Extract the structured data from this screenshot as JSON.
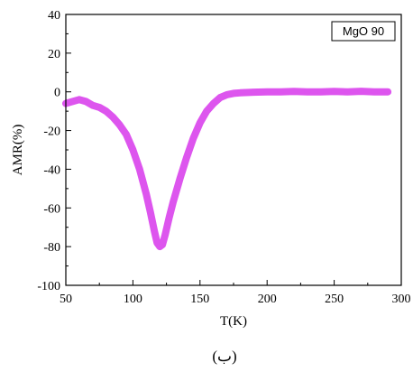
{
  "chart_data": {
    "type": "line",
    "xlabel": "T(K)",
    "ylabel": "AMR(%)",
    "xlim": [
      50,
      300
    ],
    "ylim": [
      -100,
      40
    ],
    "xticks": [
      50,
      100,
      150,
      200,
      250,
      300
    ],
    "yticks": [
      40,
      20,
      0,
      -20,
      -40,
      -60,
      -80,
      -100
    ],
    "grid": false,
    "legend_position": "top-right",
    "series": [
      {
        "name": "MgO 90",
        "color": "#dd55ee",
        "x": [
          50,
          55,
          60,
          65,
          70,
          75,
          80,
          85,
          90,
          95,
          100,
          105,
          110,
          113,
          116,
          118,
          120,
          122,
          124,
          127,
          130,
          135,
          140,
          145,
          150,
          155,
          160,
          165,
          170,
          175,
          180,
          190,
          200,
          210,
          220,
          230,
          240,
          250,
          260,
          270,
          280,
          290
        ],
        "y": [
          -6,
          -5,
          -4,
          -5,
          -7,
          -8,
          -10,
          -13,
          -17,
          -22,
          -30,
          -40,
          -53,
          -62,
          -72,
          -78,
          -80,
          -79,
          -74,
          -65,
          -57,
          -45,
          -34,
          -24,
          -16,
          -10,
          -6,
          -3,
          -1.5,
          -0.8,
          -0.5,
          -0.2,
          0,
          0,
          0.2,
          0,
          0,
          0.2,
          0,
          0.3,
          0,
          0
        ]
      }
    ],
    "caption": "(ب)"
  }
}
